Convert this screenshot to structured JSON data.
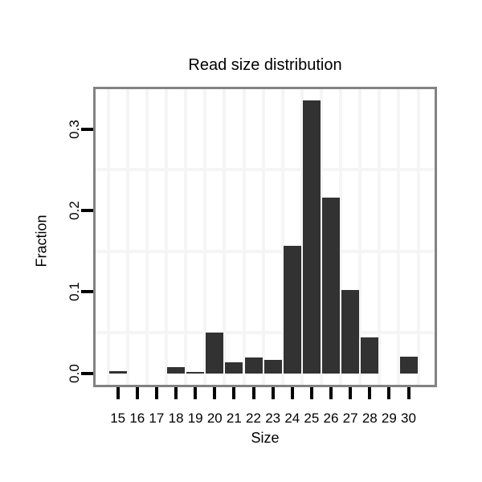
{
  "chart_data": {
    "type": "bar",
    "title": "Read size distribution",
    "xlabel": "Size",
    "ylabel": "Fraction",
    "categories": [
      15,
      16,
      17,
      18,
      19,
      20,
      21,
      22,
      23,
      24,
      25,
      26,
      27,
      28,
      29,
      30
    ],
    "values": [
      0.003,
      0,
      0,
      0.008,
      0.002,
      0.05,
      0.014,
      0.02,
      0.017,
      0.157,
      0.336,
      0.216,
      0.103,
      0.044,
      0,
      0.021
    ],
    "x_tick_labels": [
      "15",
      "16",
      "17",
      "18",
      "19",
      "20",
      "21",
      "22",
      "23",
      "24",
      "25",
      "26",
      "27",
      "28",
      "29",
      "30"
    ],
    "y_tick_labels": [
      "0.0",
      "0.1",
      "0.2",
      "0.3"
    ],
    "ylim": [
      0,
      0.35
    ],
    "grid": "minor gridlines only (vertical at half-integers, horizontal at 0.05 steps)",
    "legend": "none",
    "colors": {
      "bar": "#323232",
      "panel_border": "#828282",
      "gridline": "#f5f5f5",
      "tick": "#000000",
      "text": "#000000",
      "background": "#ffffff"
    }
  }
}
